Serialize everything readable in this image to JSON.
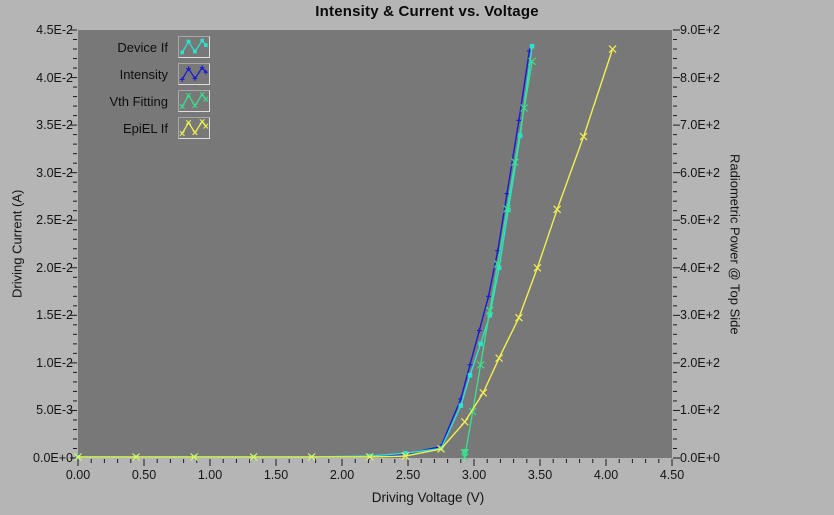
{
  "window": {
    "title": "Intensity & Current vs. Voltage"
  },
  "colors": {
    "page_bg": "#b5b5b5",
    "plot_bg": "#787878",
    "tick": "#1a1a1a",
    "text": "#141414",
    "device_if": "#2be3ce",
    "intensity": "#1a1ad6",
    "vth_fitting": "#3bde8c",
    "epiel_if": "#f0f052"
  },
  "chart_data": {
    "type": "line",
    "title": "Intensity & Current vs. Voltage",
    "grid": false,
    "legend_position": "top-left",
    "x": {
      "label": "Driving Voltage (V)",
      "min": 0,
      "max": 4.5,
      "major_step": 0.5,
      "minor_step": 0.1,
      "tick_labels": [
        "0.00",
        "0.50",
        "1.00",
        "1.50",
        "2.00",
        "2.50",
        "3.00",
        "3.50",
        "4.00",
        "4.50"
      ]
    },
    "y_left": {
      "label": "Driving Current (A)",
      "min": 0,
      "max": 0.045,
      "major_step": 0.005,
      "minor_step": 0.001,
      "tick_labels": [
        "0.0E+0",
        "5.0E-3",
        "1.0E-2",
        "1.5E-2",
        "2.0E-2",
        "2.5E-2",
        "3.0E-2",
        "3.5E-2",
        "4.0E-2",
        "4.5E-2"
      ]
    },
    "y_right": {
      "label": "Radiometric Power @ Top Side",
      "min": 0,
      "max": 900,
      "major_step": 100,
      "minor_step": 20,
      "tick_labels": [
        "0.0E+0",
        "1.0E+2",
        "2.0E+2",
        "3.0E+2",
        "4.0E+2",
        "5.0E+2",
        "6.0E+2",
        "7.0E+2",
        "8.0E+2",
        "9.0E+2"
      ]
    },
    "series": [
      {
        "name": "Device If",
        "color": "#2be3ce",
        "axis": "y_left",
        "marker": "square",
        "points": [
          [
            0,
            0
          ],
          [
            0.44,
            0.0001
          ],
          [
            0.88,
            0.0001
          ],
          [
            1.33,
            0.0001
          ],
          [
            1.77,
            0.0001
          ],
          [
            2.21,
            0.0002
          ],
          [
            2.48,
            0.0005
          ],
          [
            2.75,
            0.001
          ],
          [
            2.9,
            0.0055
          ],
          [
            2.97,
            0.0087
          ],
          [
            3.05,
            0.012
          ],
          [
            3.12,
            0.015
          ],
          [
            3.19,
            0.02
          ],
          [
            3.26,
            0.0261
          ],
          [
            3.35,
            0.0339
          ],
          [
            3.44,
            0.0433
          ]
        ]
      },
      {
        "name": "Intensity",
        "color": "#1a1ad6",
        "axis": "y_left",
        "marker": "plus",
        "points": [
          [
            0,
            0
          ],
          [
            0.44,
            0
          ],
          [
            0.88,
            0
          ],
          [
            1.33,
            0
          ],
          [
            1.77,
            0
          ],
          [
            2.21,
            0.0001
          ],
          [
            2.48,
            0.0004
          ],
          [
            2.75,
            0.0012
          ],
          [
            2.9,
            0.0062
          ],
          [
            2.97,
            0.0098
          ],
          [
            3.04,
            0.0134
          ],
          [
            3.11,
            0.017
          ],
          [
            3.18,
            0.0218
          ],
          [
            3.25,
            0.0278
          ],
          [
            3.34,
            0.0355
          ],
          [
            3.42,
            0.0428
          ]
        ]
      },
      {
        "name": "Vth Fitting",
        "color": "#3bde8c",
        "axis": "y_left",
        "marker": "x",
        "arrow_at_start": true,
        "points": [
          [
            2.93,
            0
          ],
          [
            2.99,
            0.0049
          ],
          [
            3.05,
            0.0098
          ],
          [
            3.12,
            0.0155
          ],
          [
            3.18,
            0.0204
          ],
          [
            3.25,
            0.0262
          ],
          [
            3.31,
            0.0311
          ],
          [
            3.38,
            0.0368
          ],
          [
            3.44,
            0.0417
          ]
        ]
      },
      {
        "name": "EpiEL If",
        "color": "#f0f052",
        "axis": "y_right",
        "marker": "x",
        "points": [
          [
            0,
            0
          ],
          [
            0.44,
            0
          ],
          [
            0.88,
            0
          ],
          [
            1.33,
            0
          ],
          [
            1.77,
            0
          ],
          [
            2.21,
            0
          ],
          [
            2.48,
            4
          ],
          [
            2.75,
            19
          ],
          [
            2.93,
            76
          ],
          [
            3.07,
            137
          ],
          [
            3.19,
            210
          ],
          [
            3.34,
            295
          ],
          [
            3.48,
            400
          ],
          [
            3.63,
            523
          ],
          [
            3.83,
            676
          ],
          [
            4.05,
            860
          ]
        ]
      }
    ]
  }
}
